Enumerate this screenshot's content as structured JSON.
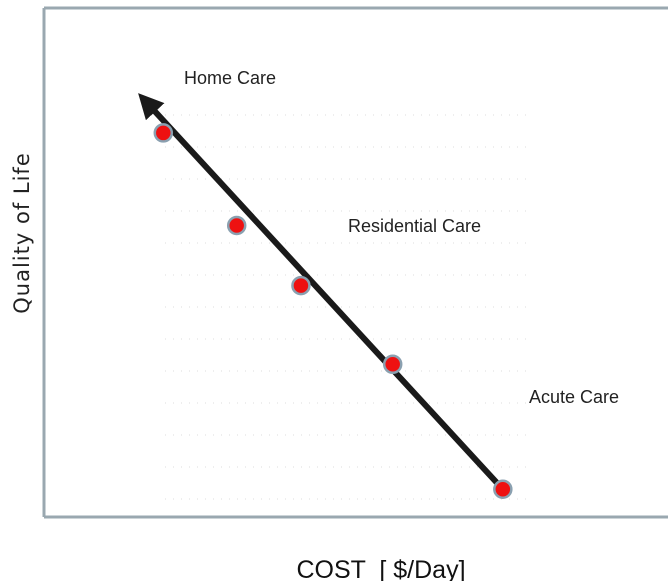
{
  "chart_data": {
    "type": "scatter",
    "title": "",
    "xlabel": "COST  [ $/Day]",
    "ylabel": "Quality of Life",
    "annotations": [
      "Home Care",
      "Residential Care",
      "Acute Care"
    ],
    "series": [
      {
        "points": [
          {
            "x": 1.3,
            "y": 8.3
          },
          {
            "x": 2.1,
            "y": 6.3
          },
          {
            "x": 2.8,
            "y": 5.0
          },
          {
            "x": 3.8,
            "y": 3.3
          },
          {
            "x": 5.0,
            "y": 0.6
          }
        ]
      }
    ],
    "trend_arrow": {
      "from": {
        "x": 5.0,
        "y": 0.6
      },
      "to": {
        "x": 1.1,
        "y": 9.0
      }
    },
    "xlim": [
      0,
      6.8
    ],
    "ylim": [
      0,
      11
    ],
    "grid": true,
    "point_color": "#ee1111",
    "arrow_color": "#1a1a1a",
    "axis_color": "#9aa8b0"
  }
}
